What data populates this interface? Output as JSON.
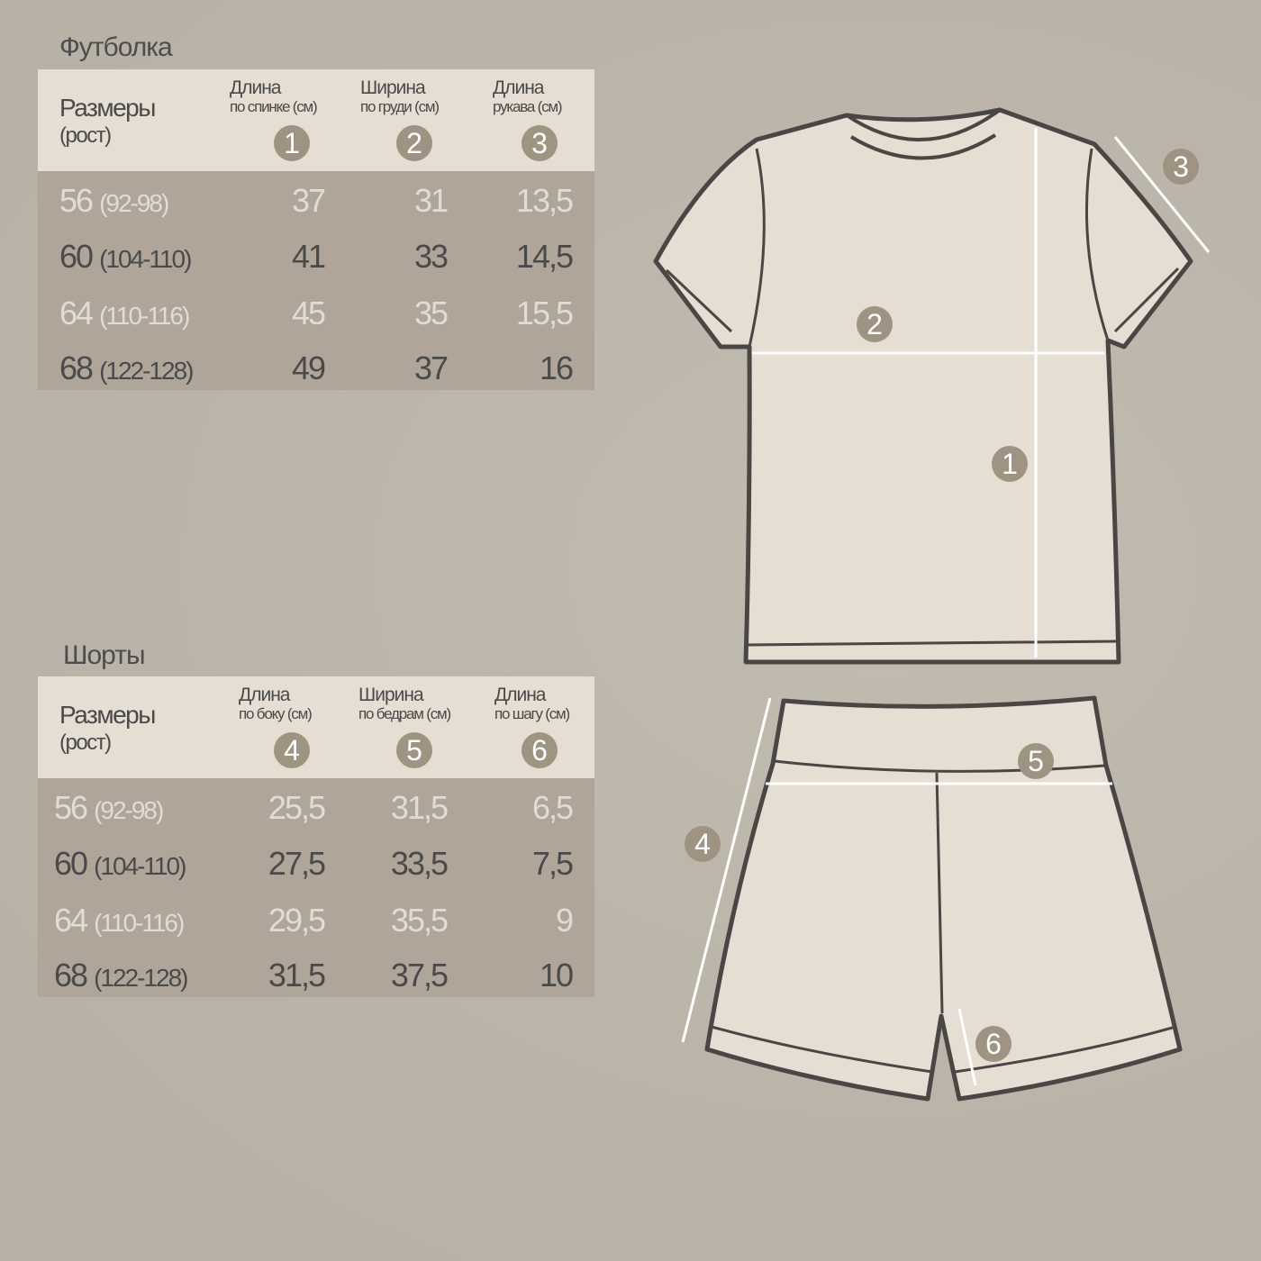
{
  "tshirt": {
    "title": "Футболка",
    "sizes_label": "Размеры",
    "height_label": "(рост)",
    "columns": [
      {
        "title": "Длина",
        "subtitle": "по спинке (см)",
        "marker": "1"
      },
      {
        "title": "Ширина",
        "subtitle": "по груди (см)",
        "marker": "2"
      },
      {
        "title": "Длина",
        "subtitle": "рукава (см)",
        "marker": "3"
      }
    ],
    "rows": [
      {
        "size": "56",
        "height": "(92-98)",
        "values": [
          "37",
          "31",
          "13,5"
        ]
      },
      {
        "size": "60",
        "height": "(104-110)",
        "values": [
          "41",
          "33",
          "14,5"
        ]
      },
      {
        "size": "64",
        "height": "(110-116)",
        "values": [
          "45",
          "35",
          "15,5"
        ]
      },
      {
        "size": "68",
        "height": "(122-128)",
        "values": [
          "49",
          "37",
          "16"
        ]
      }
    ]
  },
  "shorts": {
    "title": "Шорты",
    "sizes_label": "Размеры",
    "height_label": "(рост)",
    "columns": [
      {
        "title": "Длина",
        "subtitle": "по боку (см)",
        "marker": "4"
      },
      {
        "title": "Ширина",
        "subtitle": "по бедрам (см)",
        "marker": "5"
      },
      {
        "title": "Длина",
        "subtitle": "по шагу (см)",
        "marker": "6"
      }
    ],
    "rows": [
      {
        "size": "56",
        "height": "(92-98)",
        "values": [
          "25,5",
          "31,5",
          "6,5"
        ]
      },
      {
        "size": "60",
        "height": "(104-110)",
        "values": [
          "27,5",
          "33,5",
          "7,5"
        ]
      },
      {
        "size": "64",
        "height": "(110-116)",
        "values": [
          "29,5",
          "35,5",
          "9"
        ]
      },
      {
        "size": "68",
        "height": "(122-128)",
        "values": [
          "31,5",
          "37,5",
          "10"
        ]
      }
    ]
  },
  "diagram_markers": [
    "1",
    "2",
    "3",
    "4",
    "5",
    "6"
  ],
  "colors": {
    "background": "#bab3a7",
    "header": "#e6ddd3",
    "body": "#afa699",
    "marker": "#9f9482",
    "garment": "#e6ddd3",
    "outline": "#4a4644"
  }
}
